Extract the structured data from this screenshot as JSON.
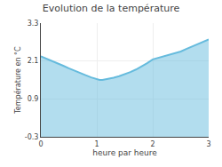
{
  "chart_data": {
    "type": "area",
    "title": "Evolution de la température",
    "xlabel": "heure par heure",
    "ylabel": "Température en °C",
    "x": [
      0,
      0.1,
      0.2,
      0.3,
      0.4,
      0.5,
      0.6,
      0.7,
      0.8,
      0.9,
      1.0,
      1.05,
      1.1,
      1.2,
      1.3,
      1.4,
      1.5,
      1.6,
      1.7,
      1.8,
      1.9,
      2.0,
      2.1,
      2.2,
      2.3,
      2.4,
      2.5,
      2.6,
      2.7,
      2.8,
      2.9,
      3.0
    ],
    "values": [
      2.25,
      2.18,
      2.1,
      2.03,
      1.95,
      1.87,
      1.79,
      1.72,
      1.65,
      1.58,
      1.52,
      1.5,
      1.5,
      1.53,
      1.57,
      1.62,
      1.68,
      1.75,
      1.83,
      1.92,
      2.03,
      2.15,
      2.2,
      2.24,
      2.28,
      2.33,
      2.4,
      2.48,
      2.56,
      2.64,
      2.71,
      2.78
    ],
    "color": "#66bbdd",
    "xlim": [
      0,
      3
    ],
    "ylim": [
      -0.3,
      3.3
    ],
    "xticks": [
      0,
      1,
      2,
      3
    ],
    "yticks": [
      -0.3,
      0.9,
      2.1,
      3.3
    ],
    "grid": true
  }
}
